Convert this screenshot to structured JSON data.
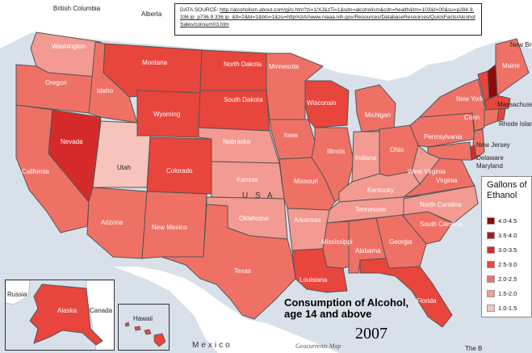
{
  "source": {
    "prefix": "DATA SOURCE: ",
    "url_text": "http://alcoholism.about.com/gi/o.htm?zi=1/XJ&zTi=1&sdn=alcoholism&cdn=health&tm=103&f=00&su=p284.9.336.ip_p736.9.336.ip_&tt=2&bt=1&bts=1&zu=http%3A//www.niaaa.nih.gov/Resources/DatabaseResources/QuickFacts/AlcoholSales/consum03.htm"
  },
  "title": {
    "main": "Consumption of Alcohol, age 14 and above",
    "year": "2007",
    "credit": "Geocurrents Map"
  },
  "legend": {
    "title": "Gallons of Ethanol",
    "bins": [
      {
        "label": "4.0-4.5",
        "color": "#8b0a0a"
      },
      {
        "label": "3.5-4.0",
        "color": "#b01818"
      },
      {
        "label": "3.0-3.5",
        "color": "#d52a2a"
      },
      {
        "label": "2.5-3.0",
        "color": "#e8453c"
      },
      {
        "label": "2.0-2.5",
        "color": "#ef7166"
      },
      {
        "label": "1.5-2.0",
        "color": "#f39a92"
      },
      {
        "label": "1.0-1.5",
        "color": "#f7c3bd"
      }
    ]
  },
  "geography": {
    "british_columbia": "British Columbia",
    "alberta": "Alberta",
    "usa": "U  S  A",
    "mexico": "Mexico",
    "russia": "Russia",
    "canada": "Canada",
    "new_brunswick": "New Brunsw",
    "the_bahamas": "The B"
  },
  "inset_labels": {
    "alaska": "Alaska",
    "hawaii": "Hawaii"
  },
  "state_labels": {
    "washington": "Washington",
    "oregon": "Oregon",
    "california": "California",
    "nevada": "Nevada",
    "idaho": "Idaho",
    "montana": "Montana",
    "wyoming": "Wyoming",
    "utah": "Utah",
    "colorado": "Colorado",
    "arizona": "Arizona",
    "new_mexico": "New Mexico",
    "north_dakota": "North Dakota",
    "south_dakota": "South Dakota",
    "nebraska": "Nebraska",
    "kansas": "Kansas",
    "oklahoma": "Oklahoma",
    "texas": "Texas",
    "minnesota": "Minnesota",
    "iowa": "Iowa",
    "missouri": "Missouri",
    "arkansas": "Arkansas",
    "louisiana": "Louisiana",
    "wisconsin": "Wisconsin",
    "illinois": "Illinois",
    "michigan": "Michigan",
    "indiana": "Indiana",
    "ohio": "Ohio",
    "kentucky": "Kentucky",
    "tennessee": "Tennessee",
    "mississippi": "Mississippi",
    "alabama": "Alabama",
    "georgia": "Georgia",
    "florida": "Florida",
    "south_carolina": "South Carolina",
    "north_carolina": "North Carolina",
    "virginia": "Virginia",
    "west_virginia": "West Virginia",
    "pennsylvania": "Pennsylvania",
    "new_york": "New York",
    "new_jersey": "New Jersey",
    "delaware": "Delaware",
    "maryland": "Maryland",
    "maine": "Maine",
    "massachusetts": "Massachuse",
    "rhode_island": "Rhode Islar",
    "connecticut": "Conn"
  },
  "state_bins": {
    "washington": "1.5-2.0",
    "oregon": "2.0-2.5",
    "california": "2.0-2.5",
    "nevada": "3.0-3.5",
    "idaho": "2.0-2.5",
    "montana": "2.5-3.0",
    "wyoming": "2.5-3.0",
    "utah": "1.0-1.5",
    "colorado": "2.5-3.0",
    "arizona": "2.0-2.5",
    "new_mexico": "2.0-2.5",
    "north_dakota": "2.5-3.0",
    "south_dakota": "2.5-3.0",
    "nebraska": "1.5-2.0",
    "kansas": "1.5-2.0",
    "oklahoma": "1.5-2.0",
    "texas": "2.0-2.5",
    "minnesota": "2.0-2.5",
    "iowa": "2.0-2.5",
    "missouri": "2.0-2.5",
    "arkansas": "1.5-2.0",
    "louisiana": "2.5-3.0",
    "wisconsin": "2.5-3.0",
    "illinois": "2.0-2.5",
    "michigan": "2.0-2.5",
    "indiana": "1.5-2.0",
    "ohio": "2.0-2.5",
    "kentucky": "1.5-2.0",
    "tennessee": "1.5-2.0",
    "mississippi": "2.0-2.5",
    "alabama": "2.0-2.5",
    "georgia": "2.0-2.5",
    "florida": "2.5-3.0",
    "south_carolina": "2.0-2.5",
    "north_carolina": "1.5-2.0",
    "virginia": "2.0-2.5",
    "west_virginia": "1.5-2.0",
    "pennsylvania": "2.0-2.5",
    "new_york": "2.0-2.5",
    "new_jersey": "2.0-2.5",
    "delaware": "3.0-3.5",
    "maryland": "2.0-2.5",
    "maine": "2.0-2.5",
    "vermont": "2.5-3.0",
    "new_hampshire": "4.0-4.5",
    "massachusetts": "2.5-3.0",
    "rhode_island": "2.5-3.0",
    "connecticut": "2.0-2.5",
    "alaska": "2.5-3.0",
    "hawaii": "2.5-3.0"
  }
}
